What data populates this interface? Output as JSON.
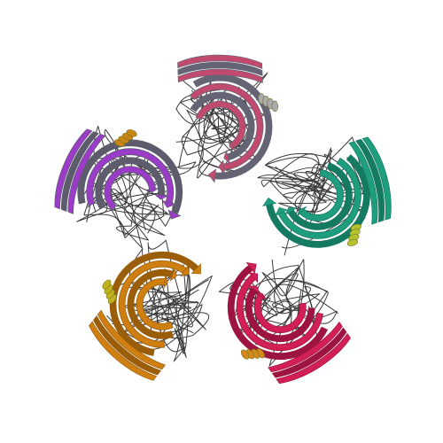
{
  "figure": {
    "type": "protein-cartoon",
    "symmetry": "pentameric ring",
    "background": "#ffffff",
    "coil_color": "#3a3a3a",
    "subunits": [
      {
        "name": "subunit-teal",
        "color": "#1f9e7f",
        "shade": "#147a61",
        "helix": "#b5c230"
      },
      {
        "name": "subunit-crimson",
        "color": "#d21f55",
        "shade": "#9e1440",
        "helix": "#d48a1a"
      },
      {
        "name": "subunit-orange",
        "color": "#cf7f10",
        "shade": "#9a5e0a",
        "helix": "#c2b21e"
      },
      {
        "name": "subunit-purple",
        "color": "#9b3cc9",
        "shade": "#5c5c6c",
        "helix": "#c98514"
      },
      {
        "name": "subunit-rose",
        "color": "#c24a6e",
        "shade": "#646474",
        "helix": "#aaaaaa"
      }
    ]
  }
}
